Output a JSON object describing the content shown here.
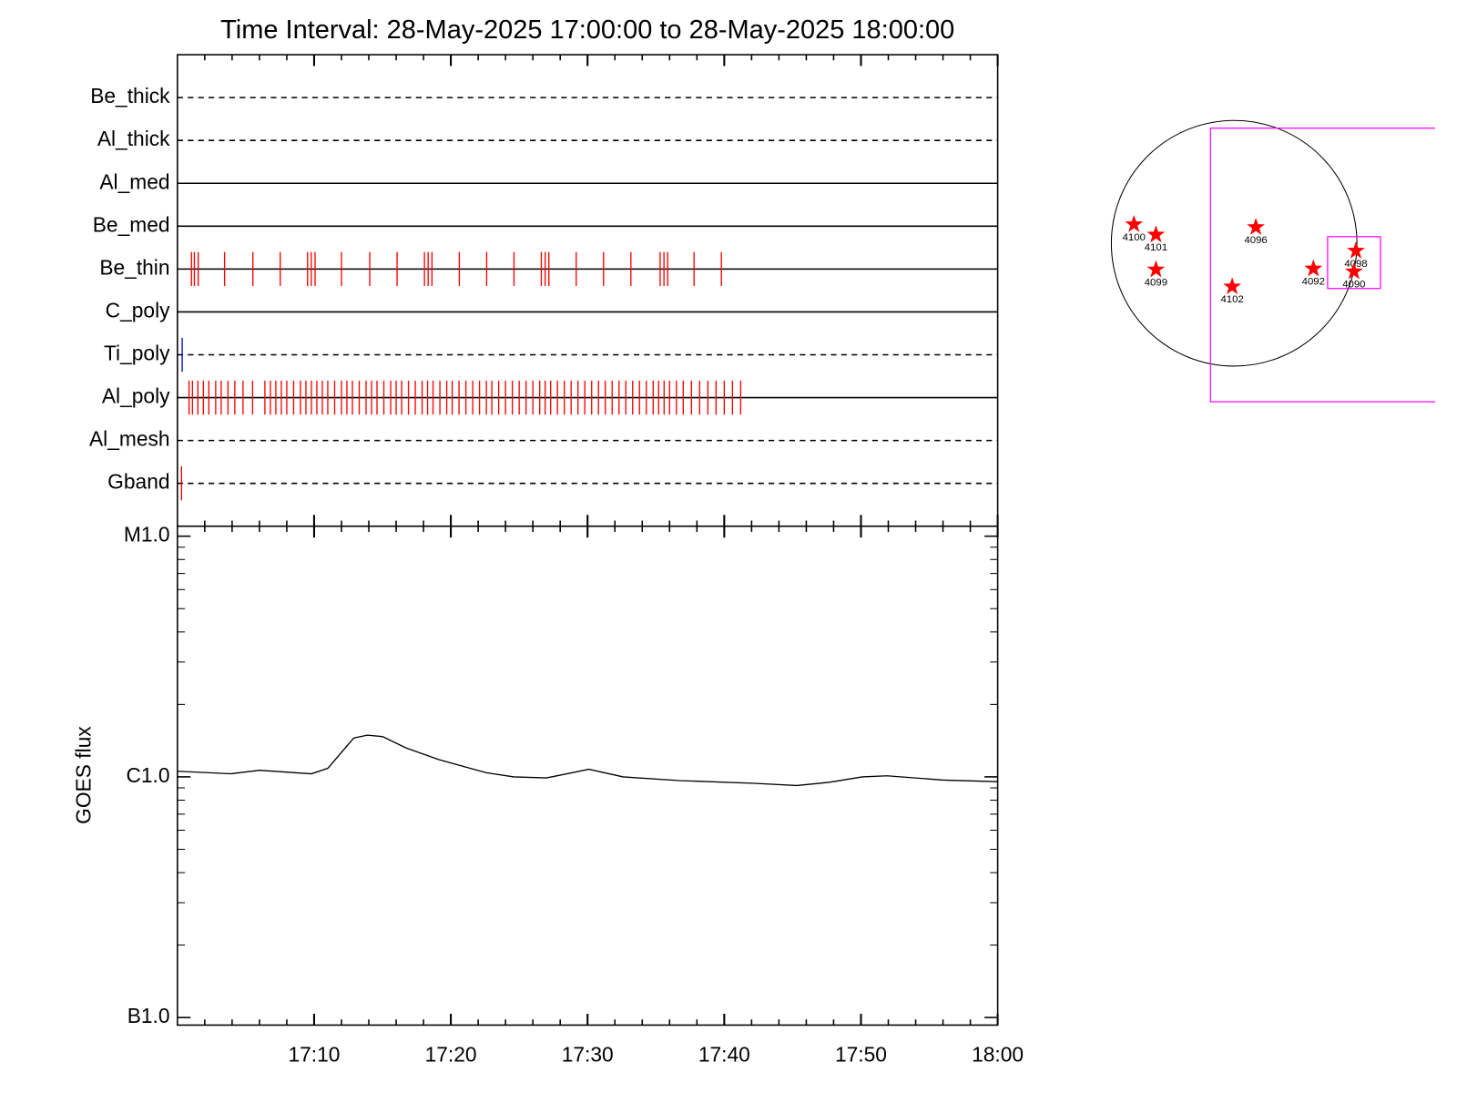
{
  "chart_data": [
    {
      "type": "timeline",
      "title": "Time Interval: 28-May-2025 17:00:00 to 28-May-2025 18:00:00",
      "categories": [
        "Be_thick",
        "Al_thick",
        "Al_med",
        "Be_med",
        "Be_thin",
        "C_poly",
        "Ti_poly",
        "Al_poly",
        "Al_mesh",
        "Gband"
      ],
      "line_styles": [
        "dashed",
        "dashed",
        "solid",
        "solid",
        "solid",
        "solid",
        "dashed",
        "solid",
        "dashed",
        "dashed"
      ],
      "event_colors": [
        "#ff0000",
        "#ff0000",
        "#ff0000",
        "#ff0000",
        "#ff0000",
        "#ff0000",
        "#0000cc",
        "#ff0000",
        "#ff0000",
        "#ff0000"
      ],
      "events": [
        [],
        [],
        [],
        [],
        [
          1.03,
          1.24,
          1.52,
          3.45,
          5.52,
          7.52,
          9.52,
          9.79,
          10.07,
          12.0,
          14.07,
          16.07,
          18.07,
          18.34,
          18.62,
          20.62,
          22.62,
          24.62,
          26.62,
          26.9,
          27.17,
          29.17,
          31.17,
          33.17,
          35.31,
          35.59,
          35.86,
          37.79,
          39.79
        ],
        [],
        [
          0.35
        ],
        [
          0.85,
          1.1,
          1.5,
          1.9,
          2.3,
          2.8,
          3.2,
          3.7,
          4.2,
          4.8,
          5.5,
          6.4,
          6.8,
          7.2,
          7.6,
          8.0,
          8.5,
          9.0,
          9.4,
          9.8,
          10.2,
          10.6,
          11.0,
          11.5,
          12.0,
          12.4,
          12.8,
          13.3,
          13.8,
          14.2,
          14.6,
          15.1,
          15.6,
          16.0,
          16.4,
          16.9,
          17.4,
          17.9,
          18.3,
          18.7,
          19.2,
          19.7,
          20.1,
          20.6,
          21.1,
          21.6,
          22.1,
          22.6,
          23.0,
          23.5,
          24.0,
          24.5,
          25.0,
          25.5,
          26.0,
          26.5,
          26.9,
          27.3,
          27.8,
          28.3,
          28.8,
          29.3,
          29.8,
          30.3,
          30.8,
          31.3,
          31.8,
          32.3,
          32.8,
          33.3,
          33.8,
          34.3,
          34.8,
          35.2,
          35.6,
          36.0,
          36.5,
          37.0,
          37.6,
          38.2,
          38.8,
          39.4,
          40.0,
          40.6,
          41.2
        ],
        [],
        [
          0.3
        ]
      ],
      "xlim": [
        0,
        60
      ]
    },
    {
      "type": "line",
      "y_label": "GOES flux",
      "x": [
        0,
        3.9,
        6.0,
        9.8,
        11.0,
        12.9,
        13.9,
        15.0,
        16.7,
        19.1,
        22.6,
        24.6,
        27.0,
        30.1,
        32.6,
        36.7,
        42.2,
        45.3,
        47.7,
        50.1,
        51.9,
        56.0,
        60
      ],
      "values": [
        1.055e-06,
        1.03e-06,
        1.065e-06,
        1.03e-06,
        1.085e-06,
        1.45e-06,
        1.49e-06,
        1.47e-06,
        1.32e-06,
        1.18e-06,
        1.04e-06,
        1e-06,
        9.9e-07,
        1.075e-06,
        1e-06,
        9.65e-07,
        9.4e-07,
        9.2e-07,
        9.5e-07,
        1e-06,
        1.01e-06,
        9.7e-07,
        9.55e-07
      ],
      "color": "#000000",
      "xlim": [
        0,
        60
      ],
      "xticks": [
        {
          "value": 10,
          "label": "17:10"
        },
        {
          "value": 20,
          "label": "17:20"
        },
        {
          "value": 30,
          "label": "17:30"
        },
        {
          "value": 40,
          "label": "17:40"
        },
        {
          "value": 50,
          "label": "17:50"
        },
        {
          "value": 60,
          "label": "18:00"
        }
      ],
      "minor_xticks": [
        2,
        4,
        6,
        8,
        12,
        14,
        16,
        18,
        22,
        24,
        26,
        28,
        32,
        34,
        36,
        38,
        42,
        44,
        46,
        48,
        52,
        54,
        56,
        58
      ],
      "ylim": [
        9.3e-08,
        1.1e-05
      ],
      "log_y": true,
      "yticks": [
        {
          "value": 1e-07,
          "label": "B1.0"
        },
        {
          "value": 1e-06,
          "label": "C1.0"
        },
        {
          "value": 1e-05,
          "label": "M1.0"
        }
      ],
      "minor_yticks": [
        2e-07,
        3e-07,
        4e-07,
        5e-07,
        6e-07,
        7e-07,
        8e-07,
        9e-07,
        2e-06,
        3e-06,
        4e-06,
        5e-06,
        6e-06,
        7e-06,
        8e-06,
        9e-06
      ]
    },
    {
      "type": "scatter",
      "labels": [
        "4100",
        "4101",
        "4099",
        "4096",
        "4102",
        "4092",
        "4098",
        "4090"
      ],
      "x": [
        -775,
        -605,
        -605,
        168,
        -15,
        613,
        942,
        927
      ],
      "y": [
        146,
        66,
        -204,
        124,
        -336,
        -197,
        -58,
        -219
      ],
      "color": "#ff0000",
      "disk_radius": 950,
      "boxes": [
        {
          "color": "#ff00ff",
          "x": [
            -183,
            1600
          ],
          "y": [
            -1227,
            891
          ]
        },
        {
          "color": "#ff00ff",
          "x": [
            723,
            1132
          ],
          "y": [
            -350,
            51
          ]
        }
      ],
      "xlim": [
        -1450,
        1555
      ],
      "ylim": [
        -1475,
        1445
      ]
    }
  ]
}
